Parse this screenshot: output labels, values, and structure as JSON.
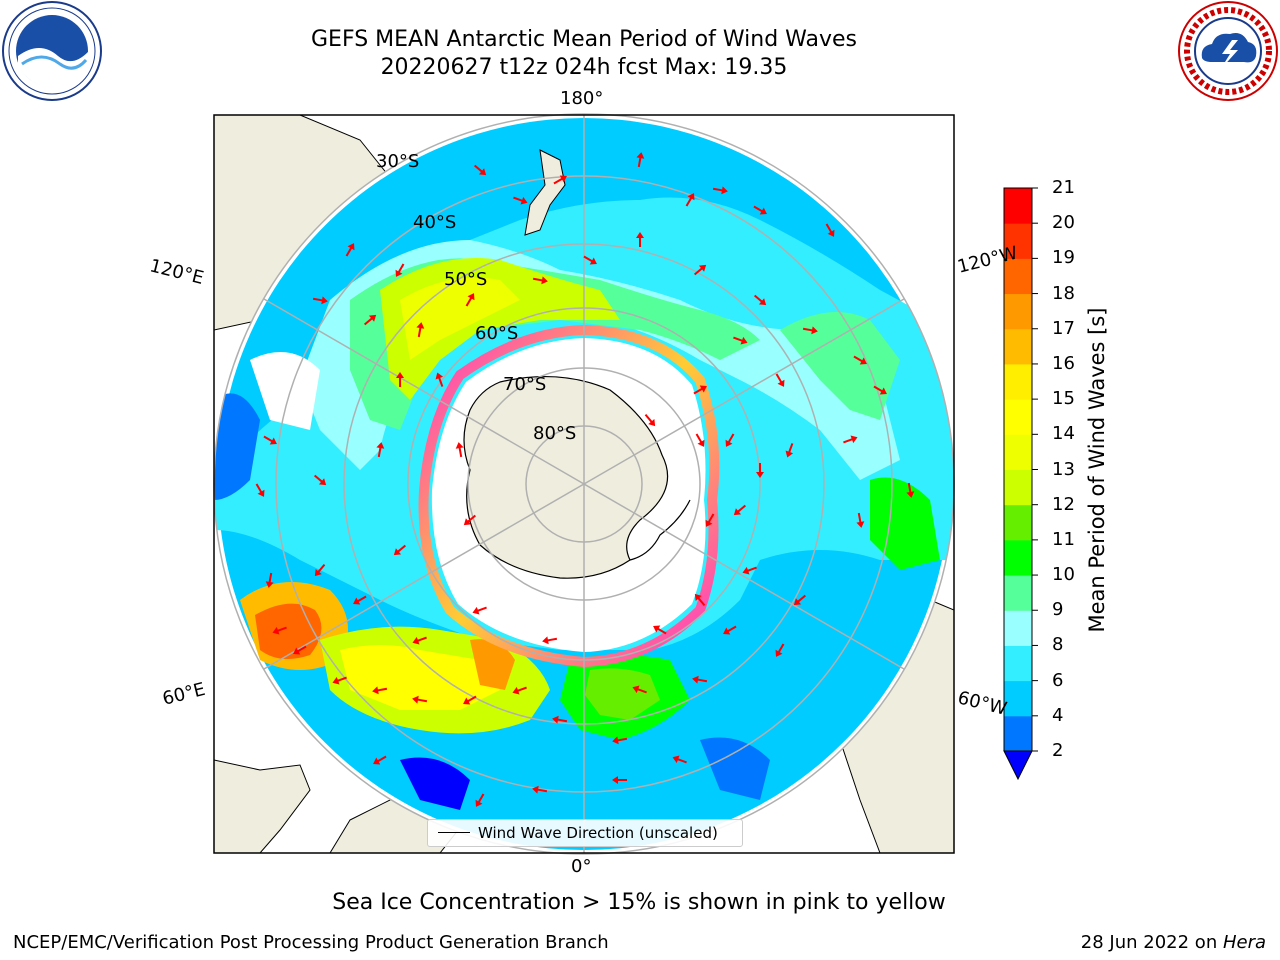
{
  "header": {
    "title_line1": "GEFS MEAN Antarctic Mean Period of Wind Waves",
    "title_line2": "20220627 t12z 024h fcst   Max: 19.35"
  },
  "map": {
    "projection": "south-polar-stereographic",
    "longitude_labels": {
      "top": "180°",
      "bottom": "0°",
      "upper_left": "120°E",
      "lower_left": "60°E",
      "upper_right": "120°W",
      "lower_right": "60°W"
    },
    "latitude_labels": [
      "30°S",
      "40°S",
      "50°S",
      "60°S",
      "70°S",
      "80°S"
    ],
    "legend": {
      "label": "Wind Wave Direction (unscaled)"
    },
    "colors": {
      "land": "#efedde",
      "sea_ice_low": "#ff33cc",
      "sea_ice_high": "#ffd700",
      "arrows": "#ff0000",
      "grid": "#b0b0b0"
    }
  },
  "colorbar": {
    "label": "Mean Period of Wind Waves [s]",
    "ticks": [
      "2",
      "4",
      "6",
      "8",
      "9",
      "10",
      "11",
      "12",
      "13",
      "14",
      "15",
      "16",
      "17",
      "18",
      "19",
      "20",
      "21"
    ],
    "bins": [
      {
        "lo": 2,
        "hi": 4,
        "color": "#0077ff"
      },
      {
        "lo": 4,
        "hi": 6,
        "color": "#00ccff"
      },
      {
        "lo": 6,
        "hi": 8,
        "color": "#33eeff"
      },
      {
        "lo": 8,
        "hi": 9,
        "color": "#99ffff"
      },
      {
        "lo": 9,
        "hi": 10,
        "color": "#55ff99"
      },
      {
        "lo": 10,
        "hi": 11,
        "color": "#00ff00"
      },
      {
        "lo": 11,
        "hi": 12,
        "color": "#66ee00"
      },
      {
        "lo": 12,
        "hi": 13,
        "color": "#ccff00"
      },
      {
        "lo": 13,
        "hi": 14,
        "color": "#eeff00"
      },
      {
        "lo": 14,
        "hi": 15,
        "color": "#ffff00"
      },
      {
        "lo": 15,
        "hi": 16,
        "color": "#ffee00"
      },
      {
        "lo": 16,
        "hi": 17,
        "color": "#ffbb00"
      },
      {
        "lo": 17,
        "hi": 18,
        "color": "#ff9900"
      },
      {
        "lo": 18,
        "hi": 19,
        "color": "#ff6600"
      },
      {
        "lo": 19,
        "hi": 20,
        "color": "#ff3300"
      },
      {
        "lo": 20,
        "hi": 21,
        "color": "#ff0000"
      }
    ],
    "under_color": "#0000ff"
  },
  "caption": "Sea Ice Concentration > 15% is shown in pink to yellow",
  "footer": {
    "left": "NCEP/EMC/Verification Post Processing Product Generation Branch",
    "right_date": "28 Jun 2022 on ",
    "right_host": "Hera"
  }
}
